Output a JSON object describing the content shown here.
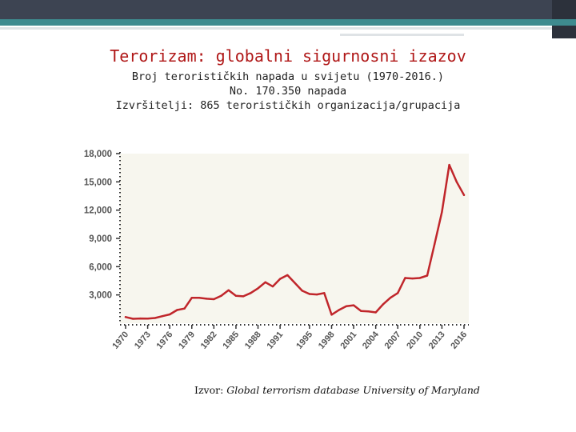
{
  "slide": {
    "title": "Terorizam: globalni sigurnosni izazov",
    "subtitle_1": "Broj terorističkih napada u svijetu (1970-2016.)",
    "subtitle_2": "No. 170.350 napada",
    "subtitle_3": "Izvršitelji: 865 terorističkih organizacija/grupacija",
    "source_label": "Izvor:",
    "source_text": "Global terrorism database University of Maryland"
  },
  "colors": {
    "title": "#b01818",
    "line": "#c0262b",
    "plot_background": "#f7f6ee",
    "topbar": "#3d4452",
    "accent_stripe": "#3e8b8f"
  },
  "chart_data": {
    "type": "line",
    "title": "",
    "xlabel": "",
    "ylabel": "",
    "xlim": [
      1970,
      2016
    ],
    "ylim": [
      0,
      18000
    ],
    "grid": false,
    "y_ticks": [
      3000,
      6000,
      9000,
      12000,
      15000,
      18000
    ],
    "y_tick_labels": [
      "3,000",
      "6,000",
      "9,000",
      "12,000",
      "15,000",
      "18,000"
    ],
    "x_ticks": [
      1970,
      1973,
      1976,
      1979,
      1982,
      1985,
      1988,
      1991,
      1995,
      1998,
      2001,
      2004,
      2007,
      2010,
      2013,
      2016
    ],
    "x_tick_labels": [
      "1970",
      "1973",
      "1976",
      "1979",
      "1982",
      "1985",
      "1988",
      "1991",
      "1995",
      "1998",
      "2001",
      "2004",
      "2007",
      "2010",
      "2013",
      "2016"
    ],
    "series": [
      {
        "x": [
          1970,
          1971,
          1972,
          1973,
          1974,
          1975,
          1976,
          1977,
          1978,
          1979,
          1980,
          1981,
          1982,
          1983,
          1984,
          1985,
          1986,
          1987,
          1988,
          1989,
          1990,
          1991,
          1992,
          1994,
          1995,
          1996,
          1997,
          1998,
          1999,
          2000,
          2001,
          2002,
          2003,
          2004,
          2005,
          2006,
          2007,
          2008,
          2009,
          2010,
          2011,
          2012,
          2013,
          2014,
          2015,
          2016
        ],
        "values": [
          650,
          470,
          500,
          480,
          550,
          750,
          930,
          1400,
          1550,
          2700,
          2700,
          2600,
          2550,
          2900,
          3500,
          2900,
          2850,
          3200,
          3700,
          4350,
          3900,
          4700,
          5100,
          3450,
          3100,
          3050,
          3200,
          900,
          1400,
          1800,
          1900,
          1300,
          1250,
          1150,
          2000,
          2700,
          3200,
          4800,
          4750,
          4800,
          5050,
          8400,
          11800,
          16800,
          15000,
          13600
        ]
      }
    ]
  }
}
